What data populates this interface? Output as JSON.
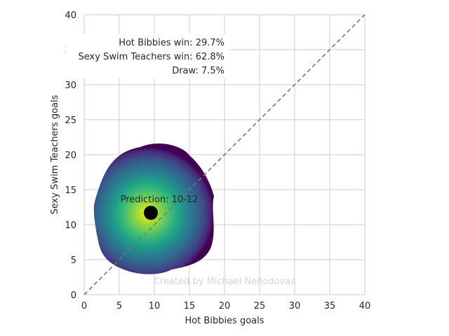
{
  "chart_data": {
    "type": "heatmap",
    "xlabel": "Hot Bibbies goals",
    "ylabel": "Sexy Swim Teachers goals",
    "xlim": [
      0,
      40
    ],
    "ylim": [
      0,
      40
    ],
    "xticks": [
      0,
      5,
      10,
      15,
      20,
      25,
      30,
      35,
      40
    ],
    "yticks": [
      0,
      5,
      10,
      15,
      20,
      25,
      30,
      35,
      40
    ],
    "grid": true,
    "colormap": "viridis",
    "density_peak": [
      9.5,
      11.5
    ],
    "density_extent_x": [
      1.5,
      18.5
    ],
    "density_extent_y": [
      3,
      21.5
    ],
    "diagonal": {
      "from": [
        0,
        0
      ],
      "to": [
        40,
        40
      ],
      "style": "dashed",
      "color": "#777777"
    },
    "prediction_point": {
      "x": 9.5,
      "y": 11.7,
      "color": "#000000"
    },
    "prediction_label": "Prediction: 10-12",
    "stats": [
      {
        "label": "Hot Bibbies win: 29.7%"
      },
      {
        "label": "Sexy Swim Teachers win: 62.8%"
      },
      {
        "label": "Draw: 7.5%"
      }
    ],
    "watermark": "Created by Michael Nefiodovas"
  }
}
